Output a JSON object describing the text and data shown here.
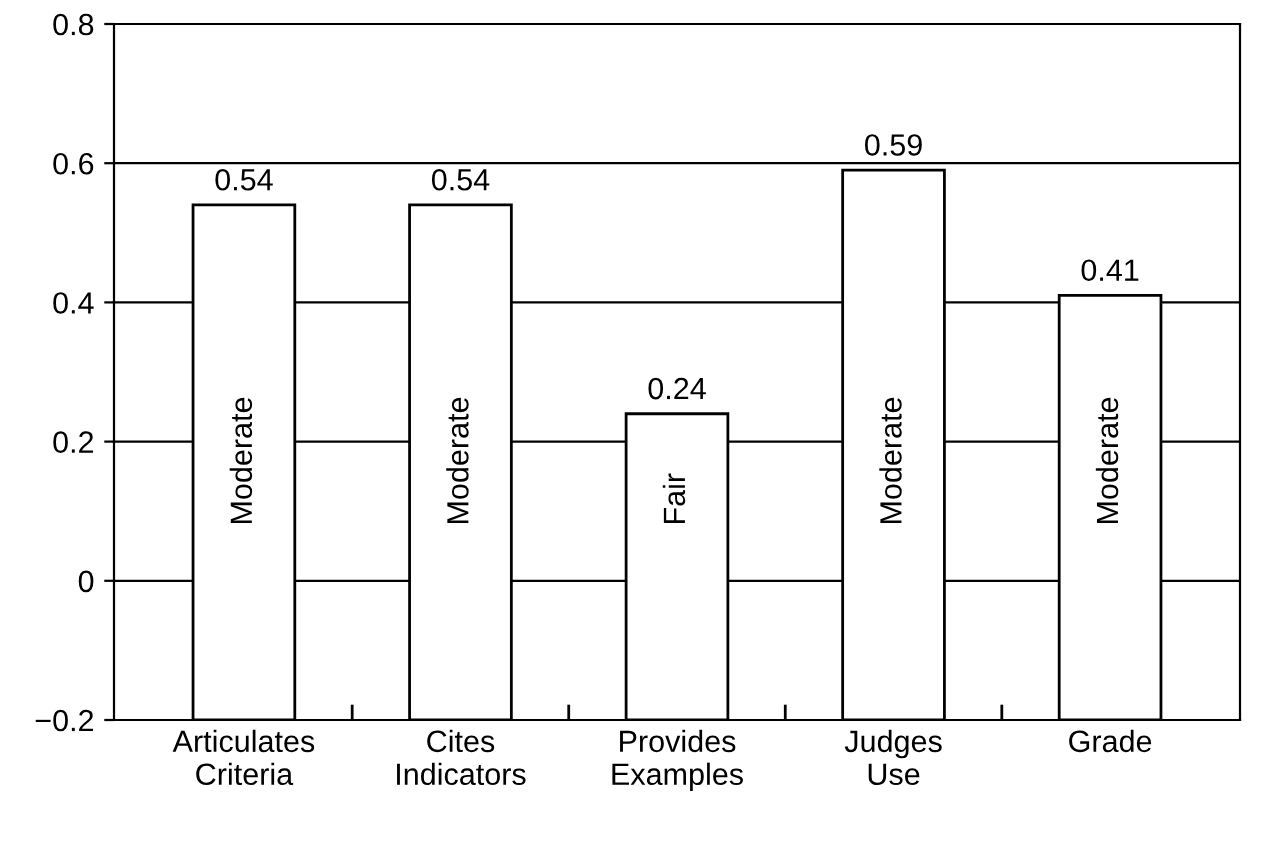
{
  "chart_data": {
    "type": "bar",
    "categories": [
      "Articulates\nCriteria",
      "Cites\nIndicators",
      "Provides\nExamples",
      "Judges\nUse",
      "Grade"
    ],
    "base": [
      -0.2,
      -0.2,
      -0.2,
      -0.2,
      -0.2
    ],
    "values": [
      0.74,
      0.74,
      0.44,
      0.79,
      0.61
    ],
    "value_labels": [
      "0.54",
      "0.54",
      "0.24",
      "0.59",
      "0.41"
    ],
    "color": "#ffffff",
    "ylim": [
      -0.2,
      0.8
    ],
    "yticks": [
      {
        "value": -0.2,
        "label": "−0.2"
      },
      0,
      0.2,
      0.4,
      0.6,
      0.8
    ],
    "grid": "y",
    "annotations": [
      "Moderate",
      "Moderate",
      "Fair",
      "Moderate",
      "Moderate"
    ]
  }
}
